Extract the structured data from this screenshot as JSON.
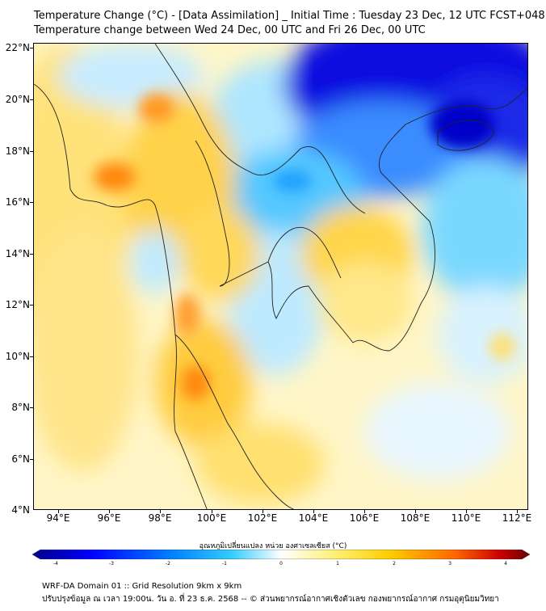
{
  "title_line1": "Temperature Change (°C) - [Data Assimilation] _ Initial Time : Tuesday 23 Dec, 12 UTC FCST+048",
  "title_line2": "Temperature change between Wed 24 Dec, 00 UTC and Fri 26 Dec, 00 UTC",
  "lat_labels": [
    "22°N",
    "20°N",
    "18°N",
    "16°N",
    "14°N",
    "12°N",
    "10°N",
    "8°N",
    "6°N",
    "4°N"
  ],
  "lon_labels": [
    "94°E",
    "96°E",
    "98°E",
    "100°E",
    "102°E",
    "104°E",
    "106°E",
    "108°E",
    "110°E",
    "112°E"
  ],
  "colorbar": {
    "title": "อุณหภูมิเปลี่ยนแปลง หน่วย องศาเซลเซียส (°C)",
    "tick_labels": [
      "-4",
      "-3",
      "-2",
      "-1",
      "0",
      "1",
      "2",
      "3",
      "4"
    ],
    "colors": [
      "#00008b",
      "#0000ff",
      "#0080ff",
      "#33ccff",
      "#ffffff",
      "#ffee66",
      "#ffcc00",
      "#ff6600",
      "#cc0000",
      "#6b0000"
    ]
  },
  "footer_line1": "WRF-DA Domain 01 :: Grid Resolution 9km x 9km",
  "footer_line2": "ปรับปรุงข้อมูล ณ เวลา 19:00น. วัน อ. ที่ 23 ธ.ค. 2568 -- © ส่วนพยากรณ์อากาศเชิงตัวเลข กองพยากรณ์อากาศ กรมอุตุนิยมวิทยา"
}
